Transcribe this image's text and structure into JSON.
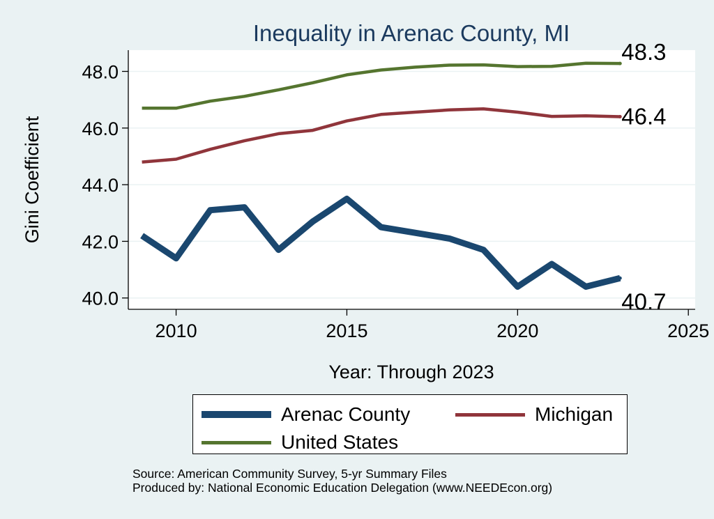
{
  "chart_data": {
    "type": "line",
    "title": "Inequality in Arenac County, MI",
    "xlabel": "Year: Through 2023",
    "ylabel": "Gini Coefficient",
    "xlim": [
      2008.6,
      2025.2
    ],
    "ylim": [
      39.6,
      48.75
    ],
    "x_ticks": [
      2010,
      2015,
      2020,
      2025
    ],
    "y_ticks": [
      40.0,
      42.0,
      44.0,
      46.0,
      48.0
    ],
    "y_tick_labels": [
      "40.0",
      "42.0",
      "44.0",
      "46.0",
      "48.0"
    ],
    "x": [
      2009,
      2010,
      2011,
      2012,
      2013,
      2014,
      2015,
      2016,
      2017,
      2018,
      2019,
      2020,
      2021,
      2022,
      2023
    ],
    "series": [
      {
        "name": "Arenac County",
        "color": "#1a476f",
        "values": [
          42.2,
          41.4,
          43.1,
          43.2,
          41.7,
          42.7,
          43.5,
          42.5,
          42.3,
          42.1,
          41.7,
          40.4,
          41.2,
          40.4,
          40.7
        ],
        "end_label": "40.7"
      },
      {
        "name": "Michigan",
        "color": "#90353b",
        "values": [
          44.8,
          44.9,
          45.25,
          45.55,
          45.8,
          45.92,
          46.25,
          46.48,
          46.56,
          46.64,
          46.68,
          46.56,
          46.41,
          46.43,
          46.4
        ],
        "end_label": "46.4"
      },
      {
        "name": "United States",
        "color": "#55752f",
        "values": [
          46.7,
          46.7,
          46.95,
          47.12,
          47.35,
          47.6,
          47.88,
          48.05,
          48.15,
          48.22,
          48.23,
          48.17,
          48.18,
          48.29,
          48.28
        ],
        "end_label": "48.3"
      }
    ],
    "legend": [
      "Arenac County",
      "Michigan",
      "United States"
    ]
  },
  "source_lines": [
    "Source: American Community Survey, 5-yr Summary Files",
    "Produced by: National Economic Education Delegation (www.NEEDEcon.org)"
  ]
}
